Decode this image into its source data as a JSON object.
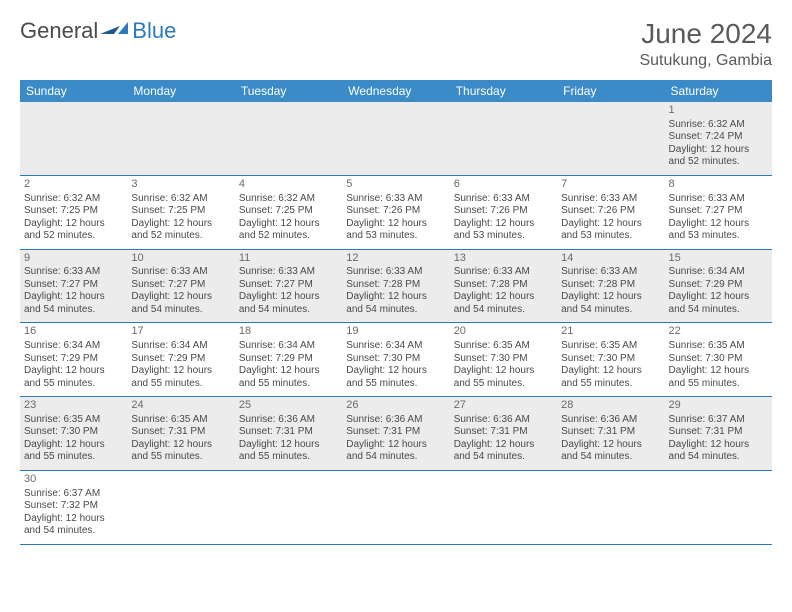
{
  "logo": {
    "text_general": "General",
    "text_blue": "Blue",
    "flag_color": "#2b7ac0"
  },
  "title": "June 2024",
  "location": "Sutukung, Gambia",
  "day_headers": [
    "Sunday",
    "Monday",
    "Tuesday",
    "Wednesday",
    "Thursday",
    "Friday",
    "Saturday"
  ],
  "colors": {
    "header_bg": "#3b8bc9",
    "header_fg": "#ffffff",
    "row_alt_bg": "#ececec",
    "row_sep": "#2b7ac0",
    "text": "#4a4a4a"
  },
  "fonts": {
    "title_size": 28,
    "location_size": 16,
    "header_size": 12,
    "cell_size": 10
  },
  "weeks": [
    [
      null,
      null,
      null,
      null,
      null,
      null,
      {
        "n": "1",
        "sr": "Sunrise: 6:32 AM",
        "ss": "Sunset: 7:24 PM",
        "d1": "Daylight: 12 hours",
        "d2": "and 52 minutes."
      }
    ],
    [
      {
        "n": "2",
        "sr": "Sunrise: 6:32 AM",
        "ss": "Sunset: 7:25 PM",
        "d1": "Daylight: 12 hours",
        "d2": "and 52 minutes."
      },
      {
        "n": "3",
        "sr": "Sunrise: 6:32 AM",
        "ss": "Sunset: 7:25 PM",
        "d1": "Daylight: 12 hours",
        "d2": "and 52 minutes."
      },
      {
        "n": "4",
        "sr": "Sunrise: 6:32 AM",
        "ss": "Sunset: 7:25 PM",
        "d1": "Daylight: 12 hours",
        "d2": "and 52 minutes."
      },
      {
        "n": "5",
        "sr": "Sunrise: 6:33 AM",
        "ss": "Sunset: 7:26 PM",
        "d1": "Daylight: 12 hours",
        "d2": "and 53 minutes."
      },
      {
        "n": "6",
        "sr": "Sunrise: 6:33 AM",
        "ss": "Sunset: 7:26 PM",
        "d1": "Daylight: 12 hours",
        "d2": "and 53 minutes."
      },
      {
        "n": "7",
        "sr": "Sunrise: 6:33 AM",
        "ss": "Sunset: 7:26 PM",
        "d1": "Daylight: 12 hours",
        "d2": "and 53 minutes."
      },
      {
        "n": "8",
        "sr": "Sunrise: 6:33 AM",
        "ss": "Sunset: 7:27 PM",
        "d1": "Daylight: 12 hours",
        "d2": "and 53 minutes."
      }
    ],
    [
      {
        "n": "9",
        "sr": "Sunrise: 6:33 AM",
        "ss": "Sunset: 7:27 PM",
        "d1": "Daylight: 12 hours",
        "d2": "and 54 minutes."
      },
      {
        "n": "10",
        "sr": "Sunrise: 6:33 AM",
        "ss": "Sunset: 7:27 PM",
        "d1": "Daylight: 12 hours",
        "d2": "and 54 minutes."
      },
      {
        "n": "11",
        "sr": "Sunrise: 6:33 AM",
        "ss": "Sunset: 7:27 PM",
        "d1": "Daylight: 12 hours",
        "d2": "and 54 minutes."
      },
      {
        "n": "12",
        "sr": "Sunrise: 6:33 AM",
        "ss": "Sunset: 7:28 PM",
        "d1": "Daylight: 12 hours",
        "d2": "and 54 minutes."
      },
      {
        "n": "13",
        "sr": "Sunrise: 6:33 AM",
        "ss": "Sunset: 7:28 PM",
        "d1": "Daylight: 12 hours",
        "d2": "and 54 minutes."
      },
      {
        "n": "14",
        "sr": "Sunrise: 6:33 AM",
        "ss": "Sunset: 7:28 PM",
        "d1": "Daylight: 12 hours",
        "d2": "and 54 minutes."
      },
      {
        "n": "15",
        "sr": "Sunrise: 6:34 AM",
        "ss": "Sunset: 7:29 PM",
        "d1": "Daylight: 12 hours",
        "d2": "and 54 minutes."
      }
    ],
    [
      {
        "n": "16",
        "sr": "Sunrise: 6:34 AM",
        "ss": "Sunset: 7:29 PM",
        "d1": "Daylight: 12 hours",
        "d2": "and 55 minutes."
      },
      {
        "n": "17",
        "sr": "Sunrise: 6:34 AM",
        "ss": "Sunset: 7:29 PM",
        "d1": "Daylight: 12 hours",
        "d2": "and 55 minutes."
      },
      {
        "n": "18",
        "sr": "Sunrise: 6:34 AM",
        "ss": "Sunset: 7:29 PM",
        "d1": "Daylight: 12 hours",
        "d2": "and 55 minutes."
      },
      {
        "n": "19",
        "sr": "Sunrise: 6:34 AM",
        "ss": "Sunset: 7:30 PM",
        "d1": "Daylight: 12 hours",
        "d2": "and 55 minutes."
      },
      {
        "n": "20",
        "sr": "Sunrise: 6:35 AM",
        "ss": "Sunset: 7:30 PM",
        "d1": "Daylight: 12 hours",
        "d2": "and 55 minutes."
      },
      {
        "n": "21",
        "sr": "Sunrise: 6:35 AM",
        "ss": "Sunset: 7:30 PM",
        "d1": "Daylight: 12 hours",
        "d2": "and 55 minutes."
      },
      {
        "n": "22",
        "sr": "Sunrise: 6:35 AM",
        "ss": "Sunset: 7:30 PM",
        "d1": "Daylight: 12 hours",
        "d2": "and 55 minutes."
      }
    ],
    [
      {
        "n": "23",
        "sr": "Sunrise: 6:35 AM",
        "ss": "Sunset: 7:30 PM",
        "d1": "Daylight: 12 hours",
        "d2": "and 55 minutes."
      },
      {
        "n": "24",
        "sr": "Sunrise: 6:35 AM",
        "ss": "Sunset: 7:31 PM",
        "d1": "Daylight: 12 hours",
        "d2": "and 55 minutes."
      },
      {
        "n": "25",
        "sr": "Sunrise: 6:36 AM",
        "ss": "Sunset: 7:31 PM",
        "d1": "Daylight: 12 hours",
        "d2": "and 55 minutes."
      },
      {
        "n": "26",
        "sr": "Sunrise: 6:36 AM",
        "ss": "Sunset: 7:31 PM",
        "d1": "Daylight: 12 hours",
        "d2": "and 54 minutes."
      },
      {
        "n": "27",
        "sr": "Sunrise: 6:36 AM",
        "ss": "Sunset: 7:31 PM",
        "d1": "Daylight: 12 hours",
        "d2": "and 54 minutes."
      },
      {
        "n": "28",
        "sr": "Sunrise: 6:36 AM",
        "ss": "Sunset: 7:31 PM",
        "d1": "Daylight: 12 hours",
        "d2": "and 54 minutes."
      },
      {
        "n": "29",
        "sr": "Sunrise: 6:37 AM",
        "ss": "Sunset: 7:31 PM",
        "d1": "Daylight: 12 hours",
        "d2": "and 54 minutes."
      }
    ],
    [
      {
        "n": "30",
        "sr": "Sunrise: 6:37 AM",
        "ss": "Sunset: 7:32 PM",
        "d1": "Daylight: 12 hours",
        "d2": "and 54 minutes."
      },
      null,
      null,
      null,
      null,
      null,
      null
    ]
  ]
}
